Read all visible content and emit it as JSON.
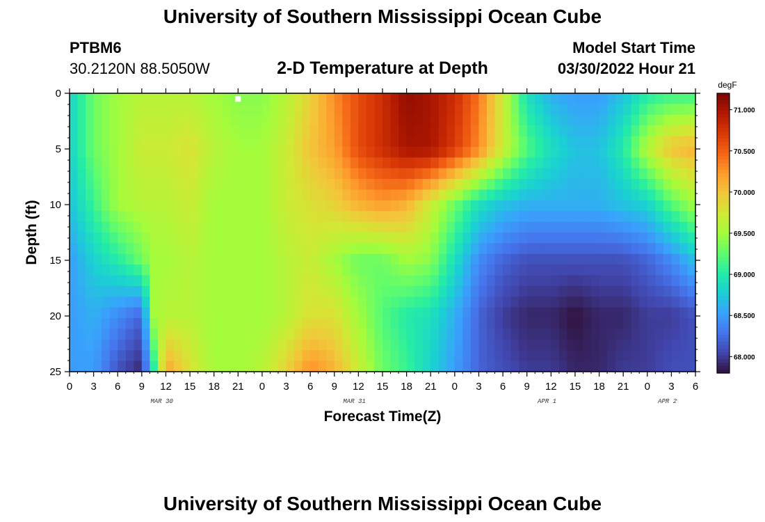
{
  "header": {
    "title": "University of Southern Mississippi Ocean Cube",
    "station_id": "PTBM6",
    "coords": "30.2120N  88.5050W",
    "plot_title": "2-D Temperature at Depth",
    "model_start_label": "Model Start Time",
    "model_start_value": "03/30/2022 Hour 21"
  },
  "footer": {
    "title": "University of Southern Mississippi Ocean Cube"
  },
  "colors": {
    "colormap": [
      "#30123b",
      "#4145ab",
      "#4675ed",
      "#39a2fc",
      "#1bcfd4",
      "#24eca6",
      "#61fc6c",
      "#a4fc3b",
      "#d1e834",
      "#f3c63a",
      "#fe9b2d",
      "#f36315",
      "#d93806",
      "#b11901",
      "#7a0402"
    ]
  },
  "chart_data": {
    "type": "heatmap",
    "title": "2-D Temperature at Depth",
    "xlabel": "Forecast Time(Z)",
    "ylabel": "Depth (ft)",
    "x_range_hours_from_mar30_00z": [
      0,
      78
    ],
    "y_range": [
      0,
      25
    ],
    "y_inverted": true,
    "x_ticks": [
      "0",
      "3",
      "6",
      "9",
      "12",
      "15",
      "18",
      "21",
      "0",
      "3",
      "6",
      "9",
      "12",
      "15",
      "18",
      "21",
      "0",
      "3",
      "6",
      "9",
      "12",
      "15",
      "18",
      "21",
      "0",
      "3",
      "6"
    ],
    "y_ticks": [
      "0",
      "5",
      "10",
      "15",
      "20",
      "25"
    ],
    "date_labels": [
      {
        "text": "MAR 30",
        "hour": 11.5
      },
      {
        "text": "MAR 31",
        "hour": 35.5
      },
      {
        "text": "APR 1",
        "hour": 59.5
      },
      {
        "text": "APR 2",
        "hour": 74.5
      }
    ],
    "colorbar": {
      "unit": "degF",
      "range": [
        67.8,
        71.2
      ],
      "ticks": [
        "68.000",
        "68.500",
        "69.000",
        "69.500",
        "70.000",
        "70.500",
        "71.000"
      ]
    },
    "time_hours": [
      0,
      3,
      6,
      9,
      10.5,
      12,
      15,
      18,
      21,
      24,
      27,
      30,
      33,
      36,
      39,
      42,
      45,
      48,
      51,
      54,
      57,
      60,
      63,
      66,
      69,
      72,
      75,
      78
    ],
    "depths_ft": [
      0,
      5,
      10,
      15,
      20,
      25
    ],
    "temperature_degF": [
      [
        68.8,
        69.3,
        69.5,
        69.6,
        69.6,
        69.6,
        69.6,
        69.5,
        69.4,
        69.4,
        69.6,
        69.9,
        70.3,
        70.6,
        70.8,
        71.1,
        71.0,
        70.8,
        70.4,
        69.7,
        68.9,
        68.6,
        68.5,
        68.5,
        68.7,
        69.0,
        69.1,
        69.1
      ],
      [
        68.8,
        69.3,
        69.5,
        69.7,
        69.7,
        69.7,
        69.8,
        69.6,
        69.5,
        69.5,
        69.7,
        70.0,
        70.2,
        70.6,
        70.8,
        71.0,
        71.0,
        70.7,
        70.3,
        69.7,
        69.2,
        68.9,
        68.7,
        68.7,
        69.0,
        69.6,
        70.0,
        70.1
      ],
      [
        68.7,
        69.1,
        69.5,
        69.6,
        69.6,
        69.6,
        69.7,
        69.5,
        69.5,
        69.5,
        69.7,
        69.8,
        69.9,
        70.1,
        70.2,
        70.1,
        69.7,
        69.3,
        68.9,
        68.7,
        68.6,
        68.6,
        68.6,
        68.6,
        68.7,
        68.8,
        69.2,
        69.5
      ],
      [
        68.5,
        68.8,
        69.0,
        69.3,
        69.5,
        69.5,
        69.6,
        69.5,
        69.5,
        69.5,
        69.6,
        69.7,
        69.5,
        69.3,
        69.3,
        69.5,
        69.4,
        68.9,
        68.4,
        68.2,
        68.1,
        68.1,
        68.1,
        68.1,
        68.1,
        68.2,
        68.4,
        68.7
      ],
      [
        68.5,
        68.6,
        68.4,
        68.2,
        69.5,
        69.6,
        69.6,
        69.5,
        69.5,
        69.5,
        69.6,
        69.8,
        69.8,
        69.5,
        69.2,
        69.0,
        68.9,
        68.6,
        68.2,
        68.0,
        67.9,
        67.9,
        67.8,
        67.9,
        67.9,
        68.0,
        68.0,
        68.1
      ],
      [
        68.5,
        68.5,
        68.1,
        67.9,
        69.0,
        70.2,
        69.8,
        69.5,
        69.5,
        69.6,
        69.9,
        70.3,
        70.1,
        69.7,
        69.3,
        69.1,
        68.8,
        68.5,
        68.2,
        68.1,
        68.0,
        68.0,
        67.9,
        67.9,
        68.0,
        68.0,
        68.1,
        68.1
      ]
    ],
    "marker": {
      "hour": 21,
      "depth_ft": 0.2
    }
  }
}
